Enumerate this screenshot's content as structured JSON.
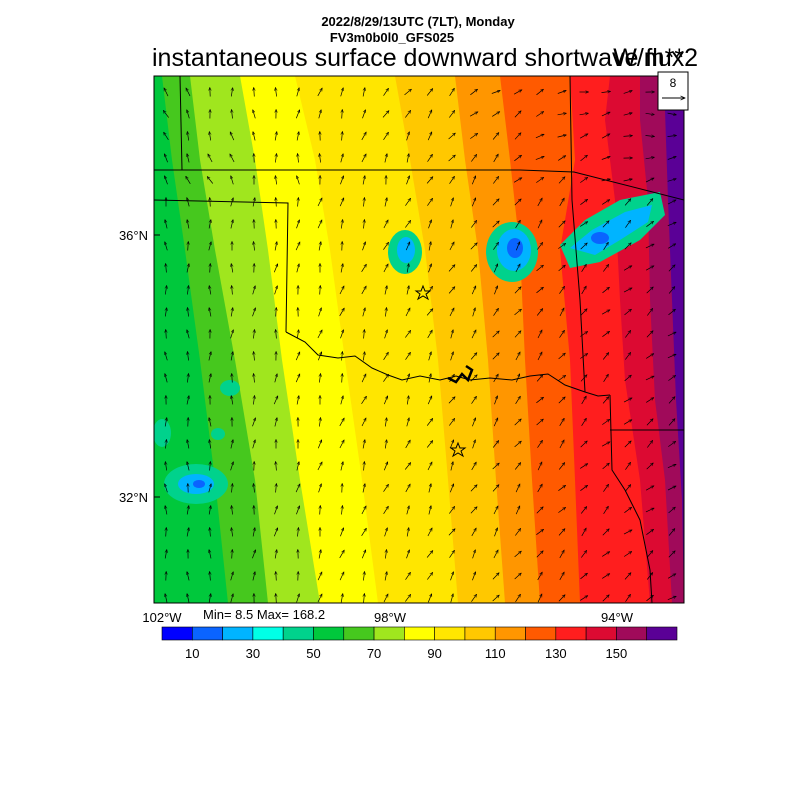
{
  "header": {
    "line1": "2022/8/29/13UTC (7LT), Monday",
    "line2": "FV3m0b0l0_GFS025"
  },
  "title": "instantaneous surface downward shortwave flux",
  "units": "W/m**2",
  "reference_vector": {
    "label": "8"
  },
  "stats": "Min= 8.5 Max= 168.2",
  "axes": {
    "lat_labels": [
      "36°N",
      "32°N"
    ],
    "lon_labels": [
      "102°W",
      "98°W",
      "94°W"
    ]
  },
  "colorbar": {
    "colors": [
      "#0000ff",
      "#0a64ff",
      "#00b4ff",
      "#00ffe6",
      "#00d28c",
      "#00c83c",
      "#46c81e",
      "#a0e61e",
      "#ffff00",
      "#ffe600",
      "#ffc800",
      "#ff9600",
      "#ff5a00",
      "#ff1e1e",
      "#dc0a32",
      "#a00a5a",
      "#5a0096"
    ],
    "tick_labels": [
      "10",
      "30",
      "50",
      "70",
      "90",
      "110",
      "130",
      "150"
    ]
  },
  "colors": {
    "background": "#ffffff",
    "border": "#000000"
  },
  "icons": [
    "star-marker-icon",
    "wind-arrow-icon"
  ]
}
